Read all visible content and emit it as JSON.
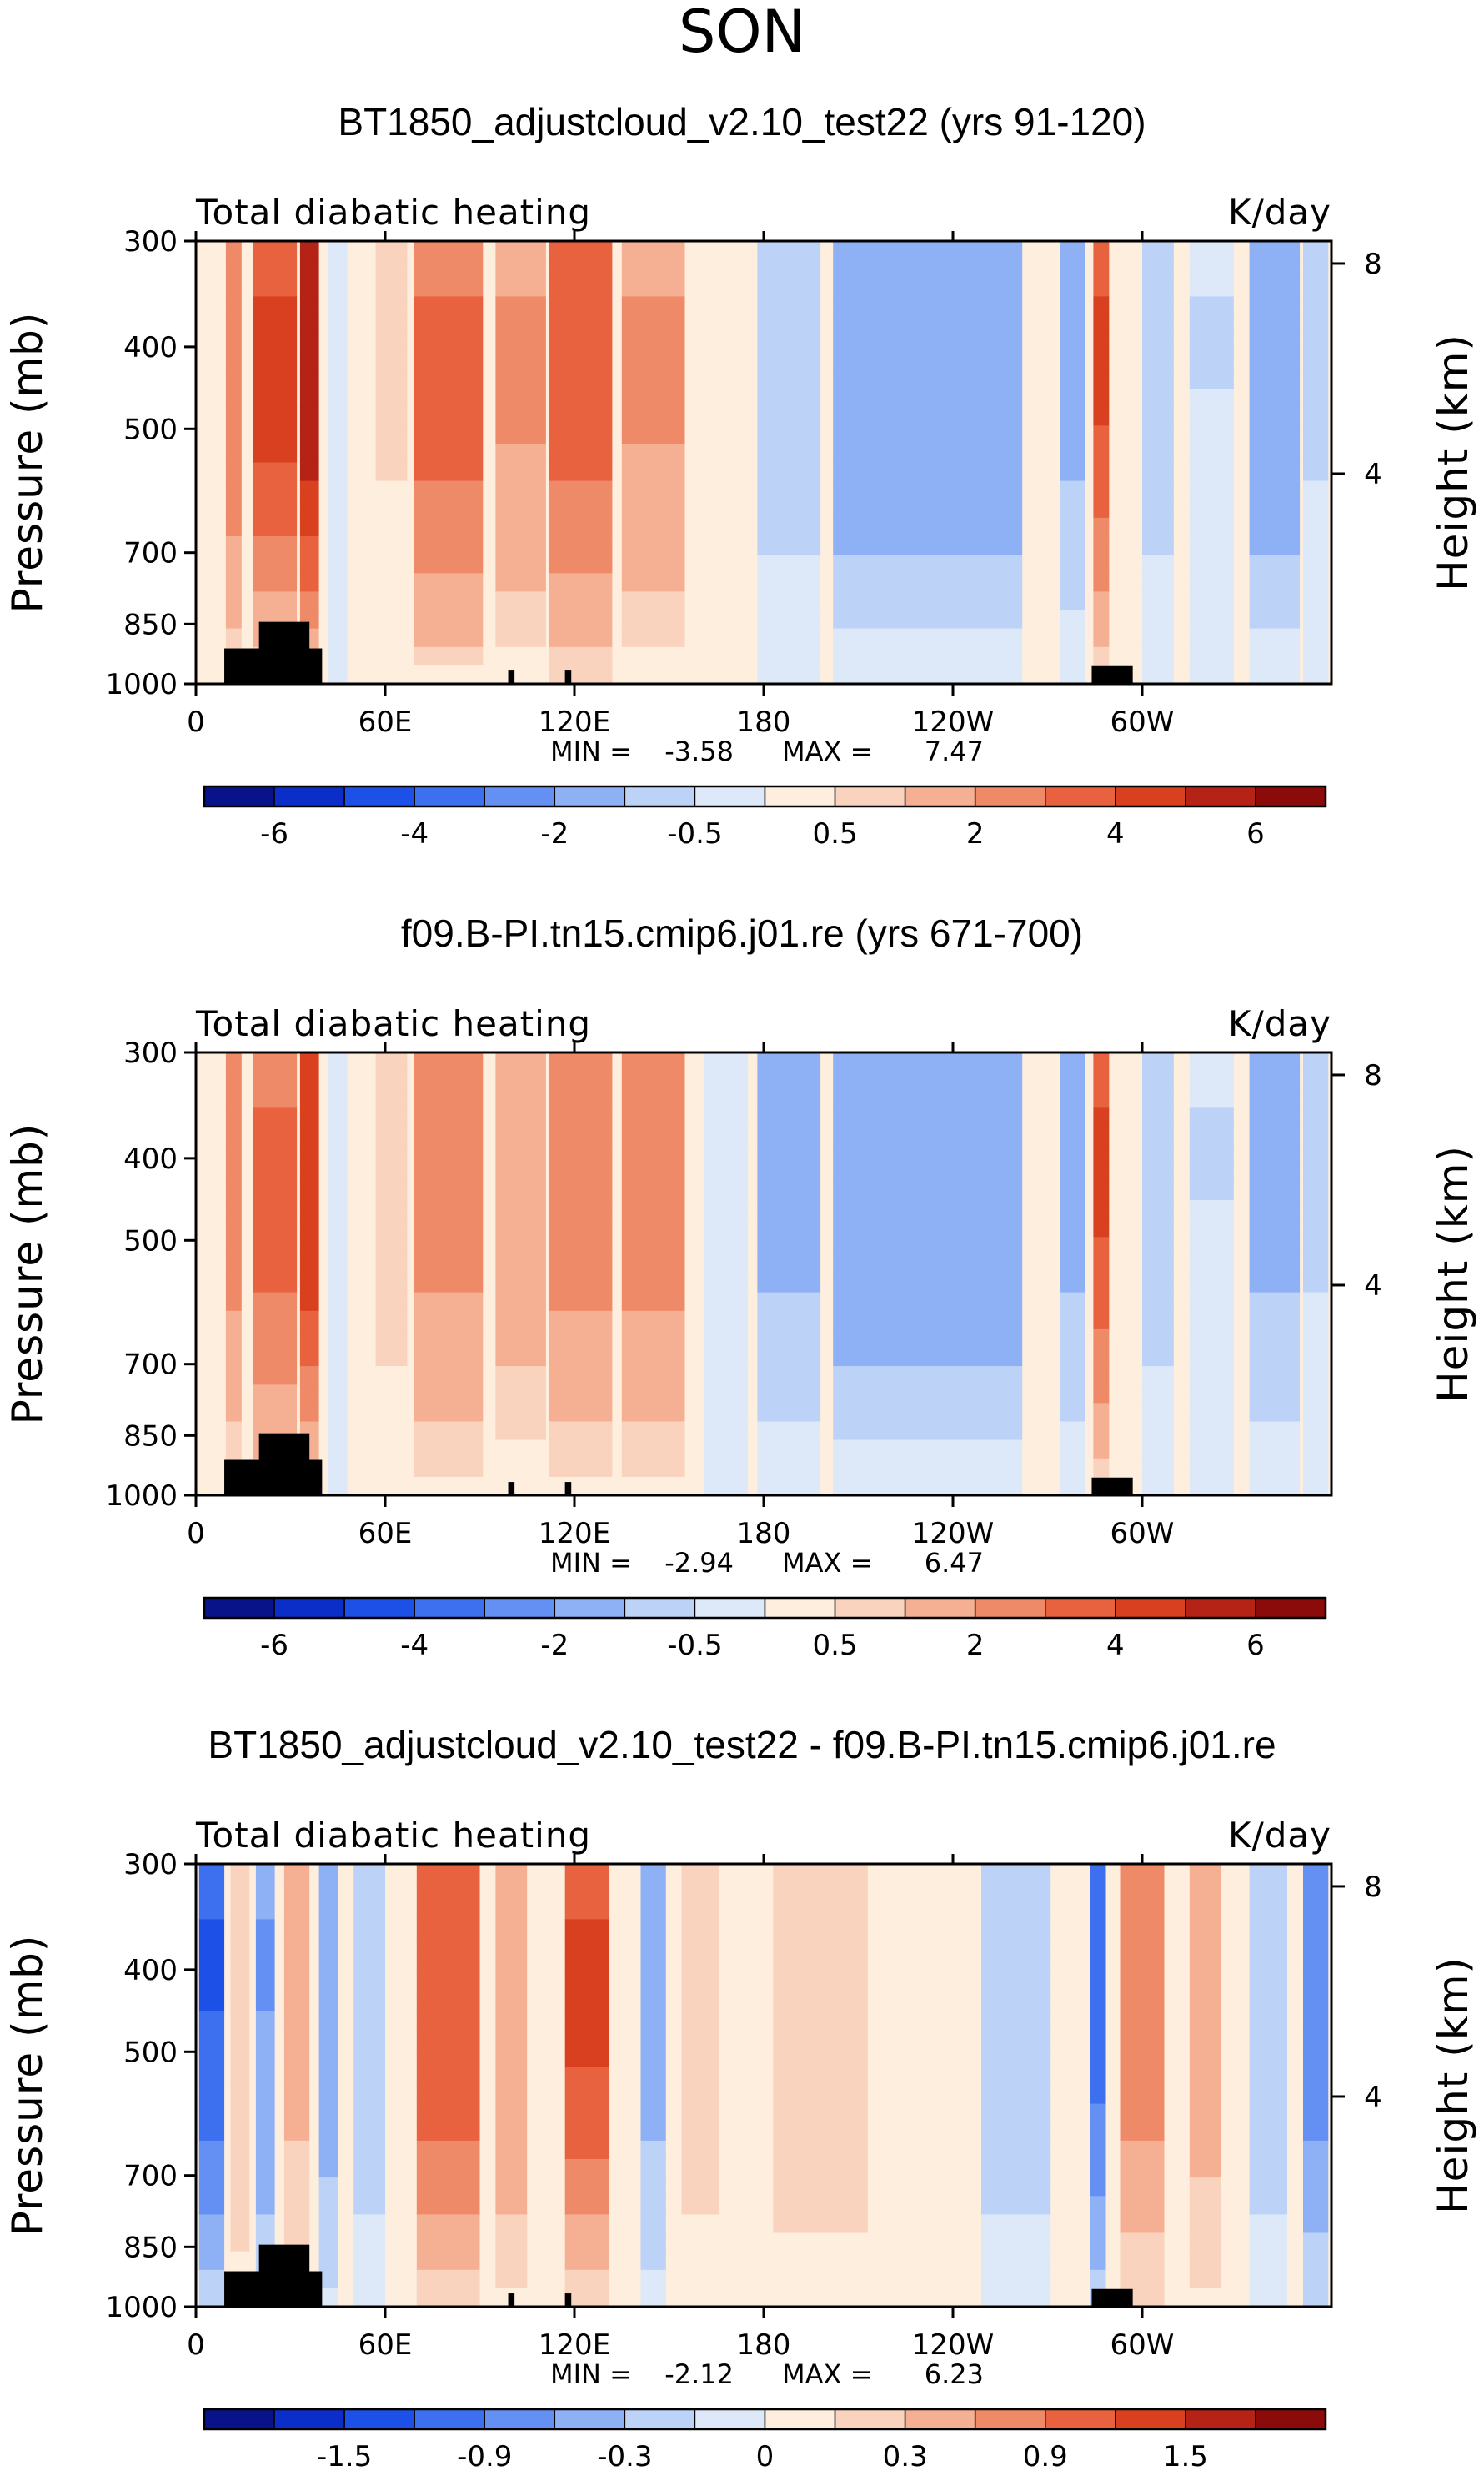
{
  "season_title": "SON",
  "colors": {
    "palette": [
      "#08138a",
      "#0b2ec8",
      "#1d50e6",
      "#3d70ef",
      "#6390f2",
      "#8eb0f4",
      "#bcd3f7",
      "#dde8f8",
      "#fdeede",
      "#f9d3bd",
      "#f5b093",
      "#ef8a69",
      "#e8623f",
      "#d9401f",
      "#b42315",
      "#8a0b09"
    ],
    "land": "#000000"
  },
  "common": {
    "left_label": "Total diabatic heating",
    "right_label": "K/day",
    "y_axis_title": "Pressure (mb)",
    "y2_axis_title": "Height (km)",
    "pressure_ticks": [
      "300",
      "400",
      "500",
      "700",
      "850",
      "1000"
    ],
    "height_ticks": [
      "8",
      "4"
    ],
    "lon_ticks": [
      "0",
      "60E",
      "120E",
      "180",
      "120W",
      "60W"
    ],
    "min_prefix": "MIN =",
    "max_prefix": "MAX ="
  },
  "panels": [
    {
      "title": "BT1850_adjustcloud_v2.10_test22 (yrs 91-120)",
      "min": "-3.58",
      "max": "7.47",
      "colorbar_labels": [
        "-6",
        "-4",
        "-2",
        "-0.5",
        "0.5",
        "2",
        "4",
        "6"
      ]
    },
    {
      "title": "f09.B-PI.tn15.cmip6.j01.re (yrs 671-700)",
      "min": "-2.94",
      "max": "6.47",
      "colorbar_labels": [
        "-6",
        "-4",
        "-2",
        "-0.5",
        "0.5",
        "2",
        "4",
        "6"
      ]
    },
    {
      "title": "BT1850_adjustcloud_v2.10_test22 - f09.B-PI.tn15.cmip6.j01.re",
      "min": "-2.12",
      "max": "6.23",
      "colorbar_labels": [
        "-1.5",
        "-0.9",
        "-0.3",
        "0",
        "0.3",
        "0.9",
        "1.5"
      ]
    }
  ],
  "chart_data": [
    {
      "type": "heatmap",
      "title": "BT1850_adjustcloud_v2.10_test22 (yrs 91-120)",
      "variable": "Total diabatic heating",
      "units": "K/day",
      "x": "longitude",
      "y": "pressure (mb)",
      "x_ticks": [
        "0",
        "60E",
        "120E",
        "180",
        "120W",
        "60W"
      ],
      "y_ticks": [
        300,
        400,
        500,
        700,
        850,
        1000
      ],
      "y2_ticks_km": [
        8,
        4
      ],
      "contour_levels": [
        -7,
        -6,
        -5,
        -4,
        -3,
        -2,
        -1,
        -0.5,
        0,
        0.5,
        1,
        2,
        3,
        4,
        5,
        6,
        7
      ],
      "colorbar_labels": [
        -6,
        -4,
        -2,
        -0.5,
        0.5,
        2,
        4,
        6
      ],
      "min": -3.58,
      "max": 7.47,
      "bands": [
        {
          "lon_center": 12,
          "lon_width": 5,
          "value": 3
        },
        {
          "lon_center": 25,
          "lon_width": 14,
          "value": 4.5
        },
        {
          "lon_center": 36,
          "lon_width": 6,
          "value": 6
        },
        {
          "lon_center": 45,
          "lon_width": 6,
          "value": -0.3
        },
        {
          "lon_center": 62,
          "lon_width": 10,
          "value": 0.6
        },
        {
          "lon_center": 80,
          "lon_width": 22,
          "value": 3.5
        },
        {
          "lon_center": 103,
          "lon_width": 16,
          "value": 2.2
        },
        {
          "lon_center": 122,
          "lon_width": 20,
          "value": 3.6
        },
        {
          "lon_center": 145,
          "lon_width": 20,
          "value": 2.2
        },
        {
          "lon_center": 168,
          "lon_width": 14,
          "value": 0.3
        },
        {
          "lon_center": 188,
          "lon_width": 20,
          "value": -0.8
        },
        {
          "lon_center": 232,
          "lon_width": 60,
          "value": -1.6
        },
        {
          "lon_center": 278,
          "lon_width": 8,
          "value": -1.2
        },
        {
          "lon_center": 287,
          "lon_width": 5,
          "value": 4.2
        },
        {
          "lon_center": 293,
          "lon_width": 5,
          "value": 0.4
        },
        {
          "lon_center": 305,
          "lon_width": 10,
          "value": -0.8
        },
        {
          "lon_center": 322,
          "lon_width": 14,
          "value": -0.5
        },
        {
          "lon_center": 342,
          "lon_width": 16,
          "value": -1.6
        },
        {
          "lon_center": 355,
          "lon_width": 8,
          "value": -0.6
        }
      ]
    },
    {
      "type": "heatmap",
      "title": "f09.B-PI.tn15.cmip6.j01.re (yrs 671-700)",
      "variable": "Total diabatic heating",
      "units": "K/day",
      "x": "longitude",
      "y": "pressure (mb)",
      "x_ticks": [
        "0",
        "60E",
        "120E",
        "180",
        "120W",
        "60W"
      ],
      "y_ticks": [
        300,
        400,
        500,
        700,
        850,
        1000
      ],
      "y2_ticks_km": [
        8,
        4
      ],
      "contour_levels": [
        -7,
        -6,
        -5,
        -4,
        -3,
        -2,
        -1,
        -0.5,
        0,
        0.5,
        1,
        2,
        3,
        4,
        5,
        6,
        7
      ],
      "colorbar_labels": [
        -6,
        -4,
        -2,
        -0.5,
        0.5,
        2,
        4,
        6
      ],
      "min": -2.94,
      "max": 6.47,
      "bands": [
        {
          "lon_center": 12,
          "lon_width": 5,
          "value": 2.5
        },
        {
          "lon_center": 25,
          "lon_width": 14,
          "value": 3.5
        },
        {
          "lon_center": 36,
          "lon_width": 6,
          "value": 5
        },
        {
          "lon_center": 45,
          "lon_width": 6,
          "value": -0.3
        },
        {
          "lon_center": 62,
          "lon_width": 10,
          "value": 0.8
        },
        {
          "lon_center": 80,
          "lon_width": 22,
          "value": 2.4
        },
        {
          "lon_center": 103,
          "lon_width": 16,
          "value": 1.6
        },
        {
          "lon_center": 122,
          "lon_width": 20,
          "value": 2.6
        },
        {
          "lon_center": 145,
          "lon_width": 20,
          "value": 2.6
        },
        {
          "lon_center": 168,
          "lon_width": 14,
          "value": -0.3
        },
        {
          "lon_center": 188,
          "lon_width": 20,
          "value": -1.2
        },
        {
          "lon_center": 232,
          "lon_width": 60,
          "value": -1.6
        },
        {
          "lon_center": 278,
          "lon_width": 8,
          "value": -1.2
        },
        {
          "lon_center": 287,
          "lon_width": 5,
          "value": 4.2
        },
        {
          "lon_center": 293,
          "lon_width": 5,
          "value": 0.4
        },
        {
          "lon_center": 305,
          "lon_width": 10,
          "value": -0.8
        },
        {
          "lon_center": 322,
          "lon_width": 14,
          "value": -0.5
        },
        {
          "lon_center": 342,
          "lon_width": 16,
          "value": -1.2
        },
        {
          "lon_center": 355,
          "lon_width": 8,
          "value": -0.6
        }
      ]
    },
    {
      "type": "heatmap",
      "title": "BT1850_adjustcloud_v2.10_test22 - f09.B-PI.tn15.cmip6.j01.re",
      "variable": "Total diabatic heating",
      "units": "K/day",
      "x": "longitude",
      "y": "pressure (mb)",
      "x_ticks": [
        "0",
        "60E",
        "120E",
        "180",
        "120W",
        "60W"
      ],
      "y_ticks": [
        300,
        400,
        500,
        700,
        850,
        1000
      ],
      "y2_ticks_km": [
        8,
        4
      ],
      "contour_levels": [
        -2.1,
        -1.8,
        -1.5,
        -1.2,
        -0.9,
        -0.6,
        -0.3,
        -0.1,
        0,
        0.1,
        0.3,
        0.6,
        0.9,
        1.2,
        1.5,
        1.8,
        2.1
      ],
      "colorbar_labels": [
        -1.5,
        -0.9,
        -0.3,
        0,
        0.3,
        0.9,
        1.5
      ],
      "min": -2.12,
      "max": 6.23,
      "bands": [
        {
          "lon_center": 5,
          "lon_width": 8,
          "value": -1.2
        },
        {
          "lon_center": 14,
          "lon_width": 6,
          "value": 0.3
        },
        {
          "lon_center": 22,
          "lon_width": 6,
          "value": -0.6
        },
        {
          "lon_center": 32,
          "lon_width": 8,
          "value": 0.4
        },
        {
          "lon_center": 42,
          "lon_width": 6,
          "value": -0.5
        },
        {
          "lon_center": 55,
          "lon_width": 10,
          "value": -0.2
        },
        {
          "lon_center": 80,
          "lon_width": 20,
          "value": 1.2
        },
        {
          "lon_center": 100,
          "lon_width": 10,
          "value": 0.6
        },
        {
          "lon_center": 124,
          "lon_width": 14,
          "value": 1.3
        },
        {
          "lon_center": 145,
          "lon_width": 8,
          "value": -0.4
        },
        {
          "lon_center": 160,
          "lon_width": 12,
          "value": 0.2
        },
        {
          "lon_center": 198,
          "lon_width": 30,
          "value": 0.25
        },
        {
          "lon_center": 232,
          "lon_width": 30,
          "value": 0.1
        },
        {
          "lon_center": 260,
          "lon_width": 22,
          "value": -0.2
        },
        {
          "lon_center": 286,
          "lon_width": 5,
          "value": -1.1
        },
        {
          "lon_center": 300,
          "lon_width": 14,
          "value": 0.8
        },
        {
          "lon_center": 320,
          "lon_width": 10,
          "value": 0.5
        },
        {
          "lon_center": 340,
          "lon_width": 12,
          "value": -0.2
        },
        {
          "lon_center": 355,
          "lon_width": 8,
          "value": -0.8
        }
      ]
    }
  ]
}
